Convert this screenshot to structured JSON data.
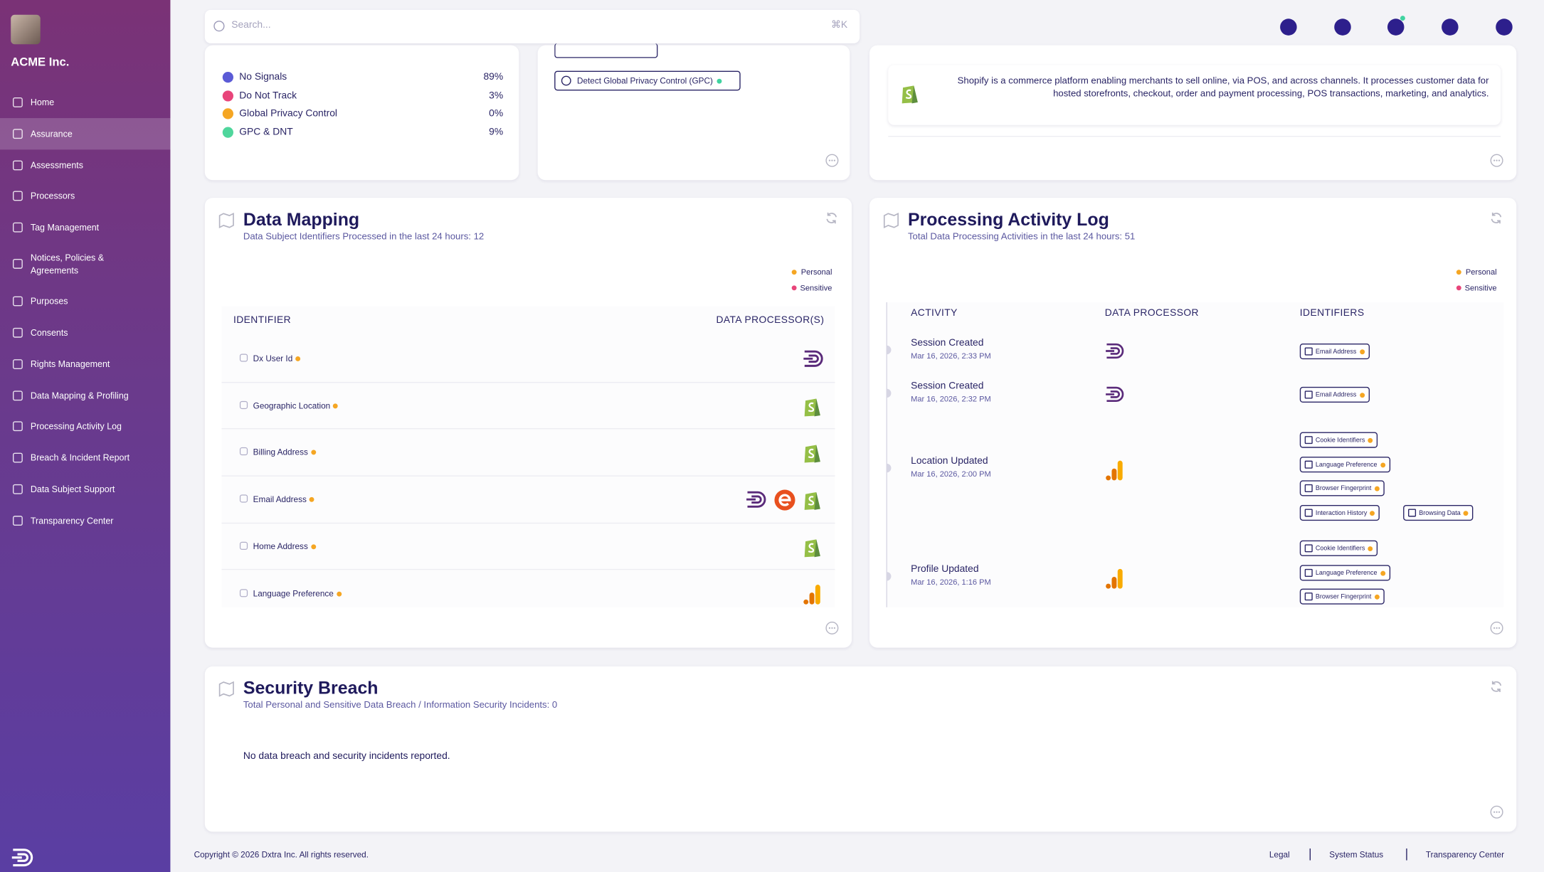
{
  "sidebar": {
    "org": "ACME Inc.",
    "nav": [
      "Home",
      "Assurance",
      "Assessments",
      "Processors",
      "Tag Management",
      "Notices, Policies & Agreements",
      "Purposes",
      "Consents",
      "Rights Management",
      "Data Mapping & Profiling",
      "Processing Activity Log",
      "Breach & Incident Report",
      "Data Subject Support",
      "Transparency Center"
    ]
  },
  "search": {
    "placeholder": "Search...",
    "shortcut": "⌘K"
  },
  "signals": [
    {
      "label": "No Signals",
      "value": "89%"
    },
    {
      "label": "Do Not Track",
      "value": "3%"
    },
    {
      "label": "Global Privacy Control",
      "value": "0%"
    },
    {
      "label": "GPC & DNT",
      "value": "9%"
    }
  ],
  "rights": {
    "gpc": "Detect Global Privacy Control (GPC)"
  },
  "processor": {
    "description": "Shopify is a commerce platform enabling merchants to sell online, via POS, and across channels. It processes customer data for hosted storefronts, checkout, order and payment processing, POS transactions, marketing, and analytics."
  },
  "data_mapping": {
    "title": "Data Mapping",
    "subtitle": "Data Subject Identifiers Processed in the last 24 hours: 12",
    "legend": [
      "Personal",
      "Sensitive"
    ],
    "headers": [
      "IDENTIFIER",
      "DATA PROCESSOR(S)"
    ],
    "rows": [
      "Dx User Id",
      "Geographic Location",
      "Billing Address",
      "Email Address",
      "Home Address",
      "Language Preference"
    ]
  },
  "activity_log": {
    "title": "Processing Activity Log",
    "subtitle": "Total Data Processing Activities in the last 24 hours: 51",
    "legend": [
      "Personal",
      "Sensitive"
    ],
    "headers": [
      "ACTIVITY",
      "DATA PROCESSOR",
      "IDENTIFIERS"
    ],
    "entries": [
      {
        "activity": "Session Created",
        "time": "Mar 16, 2026, 2:33 PM",
        "identifiers": [
          "Email Address"
        ]
      },
      {
        "activity": "Session Created",
        "time": "Mar 16, 2026, 2:32 PM",
        "identifiers": [
          "Email Address"
        ]
      },
      {
        "activity": "Location Updated",
        "time": "Mar 16, 2026, 2:00 PM",
        "identifiers": [
          "Cookie Identifiers",
          "Language Preference",
          "Browser Fingerprint",
          "Interaction History",
          "Browsing Data"
        ]
      },
      {
        "activity": "Profile Updated",
        "time": "Mar 16, 2026, 1:16 PM",
        "identifiers": [
          "Cookie Identifiers",
          "Language Preference",
          "Browser Fingerprint"
        ]
      }
    ]
  },
  "security_breach": {
    "title": "Security Breach",
    "subtitle": "Total Personal and Sensitive Data Breach / Information Security Incidents: 0",
    "message": "No data breach and security incidents reported."
  },
  "footer": {
    "copyright": "Copyright © 2026 Dxtra Inc. All rights reserved.",
    "links": [
      "Legal",
      "System Status",
      "Transparency Center"
    ]
  }
}
